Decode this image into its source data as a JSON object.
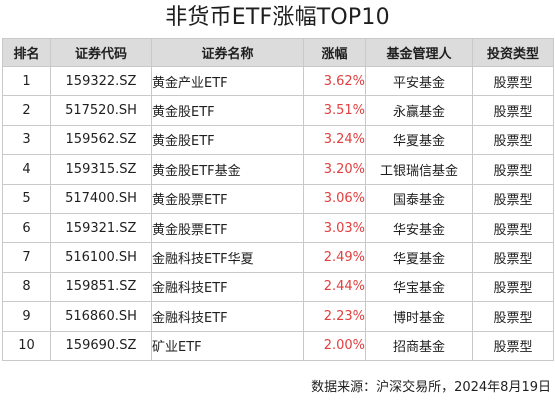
{
  "title": "非货币ETF涨幅TOP10",
  "table": {
    "headers": [
      "排名",
      "证券代码",
      "证券名称",
      "涨幅",
      "基金管理人",
      "投资类型"
    ],
    "rows": [
      {
        "rank": "1",
        "code": "159322.SZ",
        "name": "黄金产业ETF",
        "gain": "3.62%",
        "manager": "平安基金",
        "type": "股票型"
      },
      {
        "rank": "2",
        "code": "517520.SH",
        "name": "黄金股ETF",
        "gain": "3.51%",
        "manager": "永赢基金",
        "type": "股票型"
      },
      {
        "rank": "3",
        "code": "159562.SZ",
        "name": "黄金股ETF",
        "gain": "3.24%",
        "manager": "华夏基金",
        "type": "股票型"
      },
      {
        "rank": "4",
        "code": "159315.SZ",
        "name": "黄金股ETF基金",
        "gain": "3.20%",
        "manager": "工银瑞信基金",
        "type": "股票型"
      },
      {
        "rank": "5",
        "code": "517400.SH",
        "name": "黄金股票ETF",
        "gain": "3.06%",
        "manager": "国泰基金",
        "type": "股票型"
      },
      {
        "rank": "6",
        "code": "159321.SZ",
        "name": "黄金股票ETF",
        "gain": "3.03%",
        "manager": "华安基金",
        "type": "股票型"
      },
      {
        "rank": "7",
        "code": "516100.SH",
        "name": "金融科技ETF华夏",
        "gain": "2.49%",
        "manager": "华夏基金",
        "type": "股票型"
      },
      {
        "rank": "8",
        "code": "159851.SZ",
        "name": "金融科技ETF",
        "gain": "2.44%",
        "manager": "华宝基金",
        "type": "股票型"
      },
      {
        "rank": "9",
        "code": "516860.SH",
        "name": "金融科技ETF",
        "gain": "2.23%",
        "manager": "博时基金",
        "type": "股票型"
      },
      {
        "rank": "10",
        "code": "159690.SZ",
        "name": "矿业ETF",
        "gain": "2.00%",
        "manager": "招商基金",
        "type": "股票型"
      }
    ]
  },
  "source": "数据来源：沪深交易所，2024年8月19日",
  "colors": {
    "header_bg": "#dcdcdc",
    "gain_text": "#e0403f",
    "border": "#c9c9c9"
  }
}
